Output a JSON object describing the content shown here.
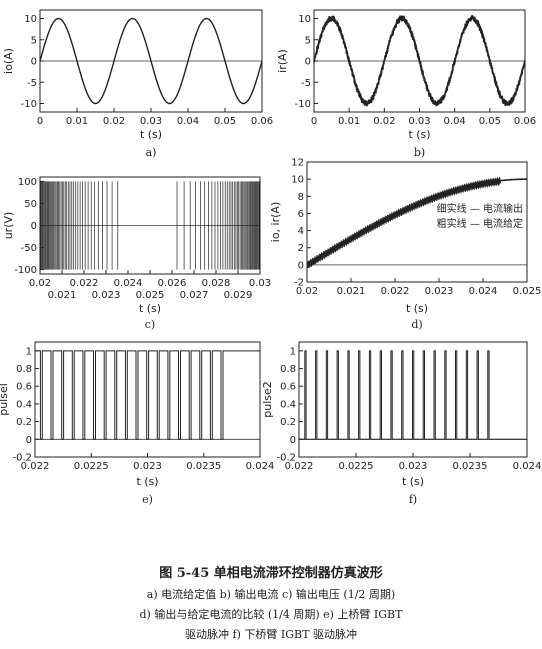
{
  "chart_data": [
    {
      "id": "a",
      "type": "line",
      "sublabel": "a)",
      "xlabel": "t (s)",
      "ylabel": "io(A)",
      "xlim": [
        0,
        0.06
      ],
      "ylim": [
        -12,
        12
      ],
      "xticks": [
        "0",
        "0.01",
        "0.02",
        "0.03",
        "0.04",
        "0.05",
        "0.06"
      ],
      "yticks": [
        "-10",
        "-5",
        "0",
        "5",
        "10"
      ],
      "series": [
        {
          "kind": "sine",
          "amplitude": 10,
          "frequency_hz": 50,
          "weight": "bold"
        }
      ]
    },
    {
      "id": "b",
      "type": "line",
      "sublabel": "b)",
      "xlabel": "t (s)",
      "ylabel": "ir(A)",
      "xlim": [
        0,
        0.06
      ],
      "ylim": [
        -12,
        12
      ],
      "xticks": [
        "0",
        "0.01",
        "0.02",
        "0.03",
        "0.04",
        "0.05",
        "0.06"
      ],
      "yticks": [
        "-10",
        "-5",
        "0",
        "5",
        "10"
      ],
      "series": [
        {
          "kind": "sine-ripple",
          "amplitude": 10,
          "frequency_hz": 50,
          "ripple": 0.9
        }
      ]
    },
    {
      "id": "c",
      "type": "line",
      "sublabel": "c)",
      "xlabel": "t (s)",
      "ylabel": "ur(V)",
      "xlim": [
        0.02,
        0.03
      ],
      "ylim": [
        -110,
        110
      ],
      "xticks_top": [
        "0.02",
        "0.022",
        "0.024",
        "0.026",
        "0.028",
        "0.03"
      ],
      "xticks_bottom": [
        "0.021",
        "0.023",
        "0.025",
        "0.027",
        "0.029"
      ],
      "yticks": [
        "-100",
        "-50",
        "0",
        "50",
        "100"
      ],
      "series": [
        {
          "kind": "pwm",
          "amplitude": 100
        }
      ]
    },
    {
      "id": "d",
      "type": "line",
      "sublabel": "d)",
      "xlabel": "t (s)",
      "ylabel": "io, ir(A)",
      "xlim": [
        0.02,
        0.025
      ],
      "ylim": [
        -2,
        12
      ],
      "xticks": [
        "0.02",
        "0.021",
        "0.022",
        "0.023",
        "0.024",
        "0.025"
      ],
      "yticks": [
        "-2",
        "0",
        "2",
        "4",
        "6",
        "8",
        "10",
        "12"
      ],
      "legend": [
        "粗实线 — 电流给定",
        "细实线 — 电流输出"
      ],
      "series": [
        {
          "kind": "quarter-sine",
          "amplitude": 10
        },
        {
          "kind": "sawtooth-follow",
          "amplitude": 10
        }
      ]
    },
    {
      "id": "e",
      "type": "line",
      "sublabel": "e)",
      "xlabel": "t (s)",
      "ylabel": "pulsel",
      "xlim": [
        0.022,
        0.024
      ],
      "ylim": [
        -0.2,
        1.1
      ],
      "xticks": [
        "0.022",
        "0.0225",
        "0.023",
        "0.0235",
        "0.024"
      ],
      "yticks": [
        "-0.2",
        "0",
        "0.2",
        "0.4",
        "0.6",
        "0.8",
        "1"
      ],
      "series": [
        {
          "kind": "pulses-low",
          "count": 18,
          "end": 0.0237
        }
      ]
    },
    {
      "id": "f",
      "type": "line",
      "sublabel": "f)",
      "xlabel": "t (s)",
      "ylabel": "pulse2",
      "xlim": [
        0.022,
        0.024
      ],
      "ylim": [
        -0.2,
        1.1
      ],
      "xticks": [
        "0.022",
        "0.0225",
        "0.023",
        "0.0235",
        "0.024"
      ],
      "yticks": [
        "-0.2",
        "0",
        "0.2",
        "0.4",
        "0.6",
        "0.8",
        "1"
      ],
      "series": [
        {
          "kind": "pulses-high",
          "count": 18,
          "end": 0.0237
        }
      ]
    }
  ],
  "caption": {
    "title": "图 5-45    单相电流滞环控制器仿真波形",
    "line1": "a) 电流给定值   b) 输出电流   c) 输出电压 (1/2 周期)",
    "line2": "d) 输出与给定电流的比较 (1/4 周期)    e) 上桥臂 IGBT",
    "line3": "驱动脉冲   f) 下桥臂 IGBT 驱动脉冲"
  }
}
